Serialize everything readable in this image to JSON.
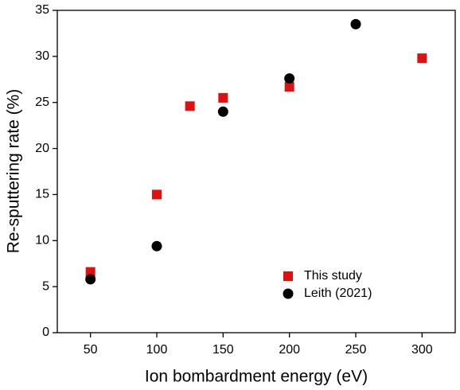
{
  "chart_data": {
    "type": "scatter",
    "x_label": "Ion bombardment energy (eV)",
    "y_label": "Re-sputtering rate (%)",
    "xlim": [
      25,
      325
    ],
    "xticks": [
      50,
      100,
      150,
      200,
      250,
      300
    ],
    "ylim": [
      0,
      35
    ],
    "yticks": [
      0,
      5,
      10,
      15,
      20,
      25,
      30,
      35
    ],
    "legend": "lower-right",
    "series": [
      {
        "name": "This study",
        "color": "#e01010",
        "marker": "square",
        "x": [
          50,
          100,
          125,
          150,
          200,
          300
        ],
        "values": [
          6.6,
          15.0,
          24.6,
          25.5,
          26.7,
          29.8
        ]
      },
      {
        "name": "Leith (2021)",
        "color": "#000000",
        "marker": "circle",
        "x": [
          50,
          100,
          150,
          200,
          250
        ],
        "values": [
          5.8,
          9.4,
          24.0,
          27.6,
          33.5
        ]
      }
    ]
  }
}
